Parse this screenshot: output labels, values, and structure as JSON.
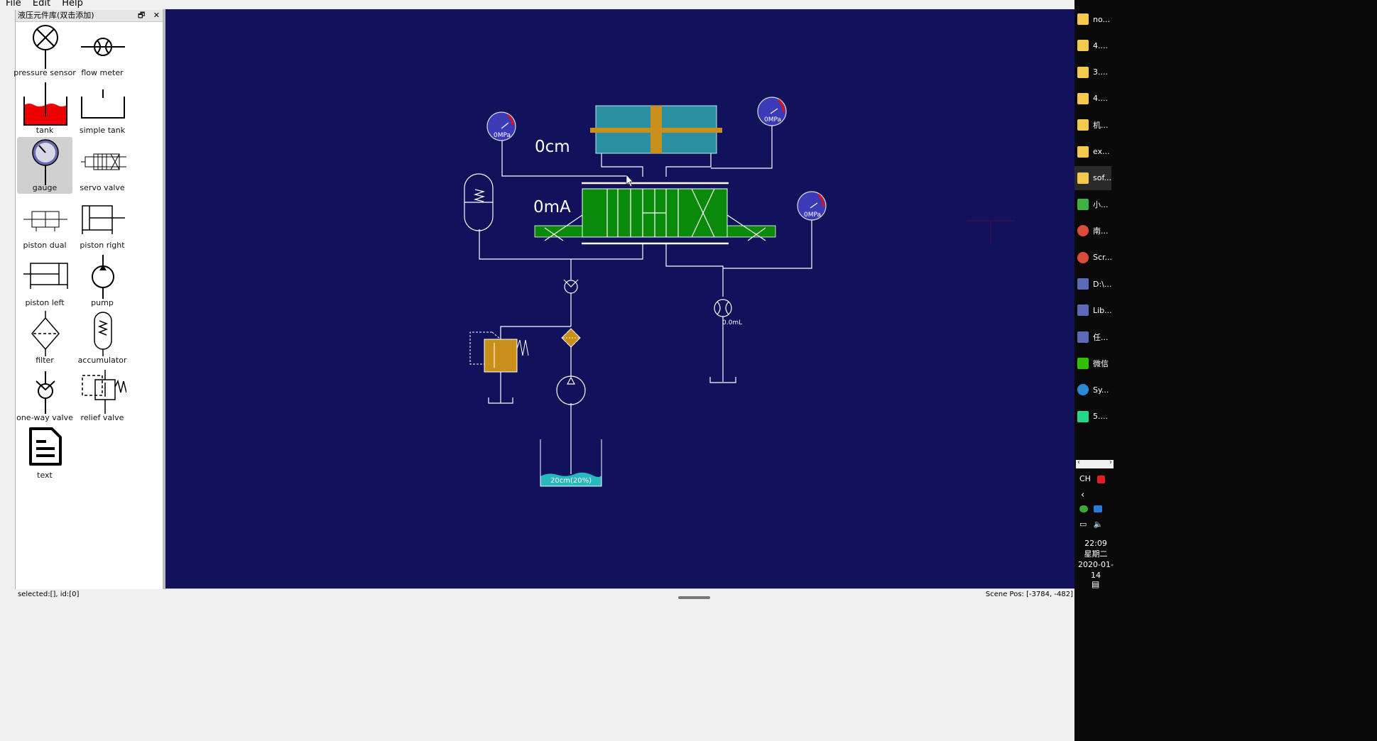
{
  "menu": {
    "file": "File",
    "edit": "Edit",
    "help": "Help"
  },
  "dock": {
    "title": "液压元件库(双击添加)",
    "float_icon": "🗗",
    "close_icon": "✕"
  },
  "library": [
    {
      "label": "pressure sensor",
      "icon": "pressure-sensor"
    },
    {
      "label": "flow meter",
      "icon": "flow-meter"
    },
    {
      "label": "tank",
      "icon": "tank"
    },
    {
      "label": "simple tank",
      "icon": "simple-tank"
    },
    {
      "label": "gauge",
      "icon": "gauge",
      "selected": true
    },
    {
      "label": "servo valve",
      "icon": "servo-valve"
    },
    {
      "label": "piston dual",
      "icon": "piston-dual"
    },
    {
      "label": "piston right",
      "icon": "piston-right"
    },
    {
      "label": "piston left",
      "icon": "piston-left"
    },
    {
      "label": "pump",
      "icon": "pump"
    },
    {
      "label": "filter",
      "icon": "filter"
    },
    {
      "label": "accumulator",
      "icon": "accumulator"
    },
    {
      "label": "one-way valve",
      "icon": "one-way-valve"
    },
    {
      "label": "relief valve",
      "icon": "relief-valve"
    },
    {
      "label": "text",
      "icon": "text"
    }
  ],
  "scene": {
    "position_text": "0cm",
    "current_text": "0mA",
    "gauge_left": "0MPa",
    "gauge_right_top": "0MPa",
    "gauge_right": "0MPa",
    "flow_text": "0.0mL",
    "tank_text": "20cm(20%)",
    "tank_level": 0.2,
    "colors": {
      "background": "#11115c",
      "cylinder": "#2a8fa0",
      "rod": "#c8901a",
      "valve": "#0a8a0a",
      "relief": "#b8860b",
      "tank_fluid": "#2ab8c0",
      "gauge_face": "#3b3bb8",
      "gauge_red": "#e0101a"
    }
  },
  "status": {
    "selected": "selected:[], id:[0]",
    "scene_pos": "Scene Pos: [-3784, -482]"
  },
  "taskbar": {
    "items": [
      {
        "label": "no...",
        "icon": "folder-icon"
      },
      {
        "label": "4....",
        "icon": "folder-icon"
      },
      {
        "label": "3....",
        "icon": "folder-icon"
      },
      {
        "label": "4....",
        "icon": "folder-icon"
      },
      {
        "label": "机...",
        "icon": "folder-icon"
      },
      {
        "label": "ex...",
        "icon": "folder-icon"
      },
      {
        "label": "sof...",
        "icon": "folder-icon",
        "active": true
      },
      {
        "label": "小...",
        "icon": "tree-icon"
      },
      {
        "label": "南...",
        "icon": "chrome-icon"
      },
      {
        "label": "Scr...",
        "icon": "chrome-icon"
      },
      {
        "label": "D:\\...",
        "icon": "app-icon"
      },
      {
        "label": "Lib...",
        "icon": "app-icon"
      },
      {
        "label": "任...",
        "icon": "app-icon"
      },
      {
        "label": "微信",
        "icon": "wechat-icon"
      },
      {
        "label": "Sy...",
        "icon": "sync-icon"
      },
      {
        "label": "5....",
        "icon": "pycharm-icon"
      }
    ],
    "ime": "CH",
    "time": "22:09",
    "weekday": "星期二",
    "date": "2020-01-14"
  }
}
